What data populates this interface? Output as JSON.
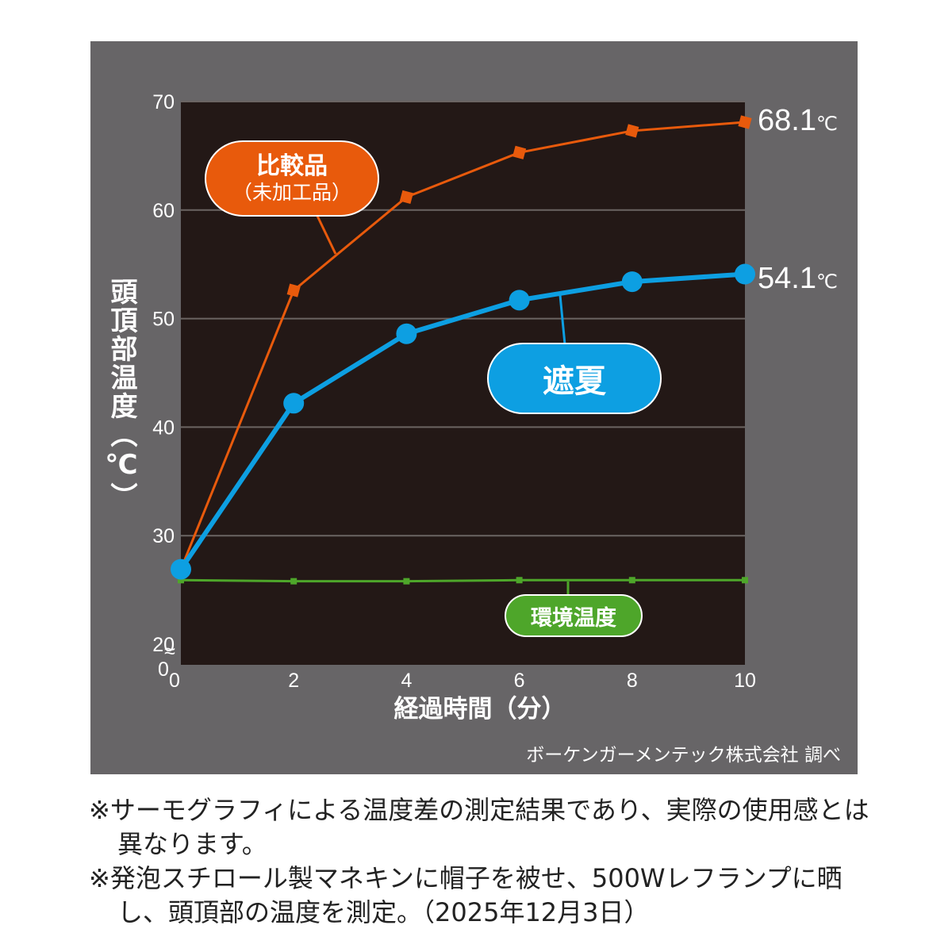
{
  "chart_data": {
    "type": "line",
    "xlabel": "経過時間（分）",
    "ylabel": "頭頂部温度（℃）",
    "x": [
      0,
      2,
      4,
      6,
      8,
      10
    ],
    "xticks": [
      "0",
      "2",
      "4",
      "6",
      "8",
      "10"
    ],
    "yticks": [
      "20",
      "30",
      "40",
      "50",
      "60",
      "70"
    ],
    "ylim": [
      20,
      70
    ],
    "axis_break": "≈",
    "axis_zero_y": "0",
    "grid": true,
    "series": [
      {
        "name": "比較品（未加工品）",
        "label_line1": "比較品",
        "label_line2": "（未加工品）",
        "color": "#e85a0c",
        "marker": "square",
        "values": [
          26.9,
          52.6,
          61.2,
          65.3,
          67.3,
          68.1
        ],
        "end_value": "68.1",
        "end_unit": "℃"
      },
      {
        "name": "遮夏",
        "color": "#0d9fe2",
        "marker": "circle",
        "values": [
          26.9,
          42.2,
          48.6,
          51.7,
          53.4,
          54.1
        ],
        "end_value": "54.1",
        "end_unit": "℃"
      },
      {
        "name": "環境温度",
        "color": "#4ea62a",
        "marker": "small-square",
        "values": [
          25.9,
          25.8,
          25.8,
          25.9,
          25.9,
          25.9
        ]
      }
    ]
  },
  "credit": "ボーケンガーメンテック株式会社 調べ",
  "notes": [
    "※サーモグラフィによる温度差の測定結果であり、実際の使用感とは異なります。",
    "※発泡スチロール製マネキンに帽子を被せ、500Wレフランプに晒し、頭頂部の温度を測定。（2025年12月3日）"
  ]
}
